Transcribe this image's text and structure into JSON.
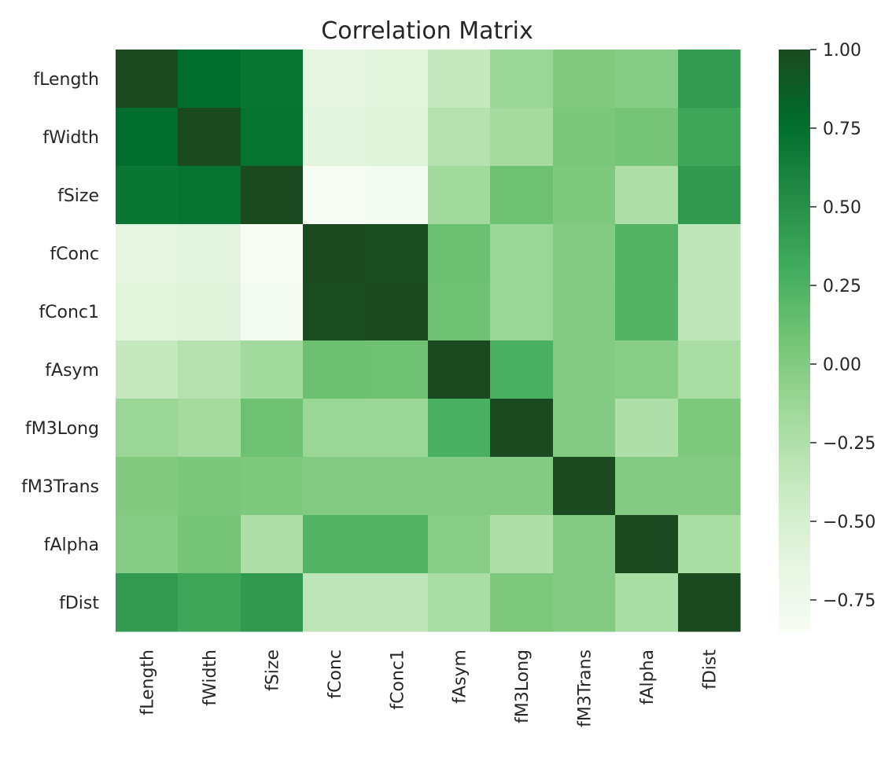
{
  "chart_data": {
    "type": "heatmap",
    "title": "Correlation Matrix",
    "xlabel": "",
    "ylabel": "",
    "x_labels": [
      "fLength",
      "fWidth",
      "fSize",
      "fConc",
      "fConc1",
      "fAsym",
      "fM3Long",
      "fM3Trans",
      "fAlpha",
      "fDist"
    ],
    "y_labels": [
      "fLength",
      "fWidth",
      "fSize",
      "fConc",
      "fConc1",
      "fAsym",
      "fM3Long",
      "fM3Trans",
      "fAlpha",
      "fDist"
    ],
    "values": [
      [
        1.0,
        0.77,
        0.7,
        -0.63,
        -0.6,
        -0.38,
        -0.12,
        0.01,
        -0.01,
        0.42
      ],
      [
        0.77,
        1.0,
        0.72,
        -0.61,
        -0.58,
        -0.27,
        -0.18,
        0.04,
        0.07,
        0.34
      ],
      [
        0.7,
        0.72,
        1.0,
        -0.85,
        -0.81,
        -0.16,
        0.1,
        0.02,
        -0.23,
        0.44
      ],
      [
        -0.63,
        -0.61,
        -0.85,
        1.0,
        0.98,
        0.11,
        -0.12,
        0.0,
        0.23,
        -0.33
      ],
      [
        -0.6,
        -0.58,
        -0.81,
        0.98,
        1.0,
        0.1,
        -0.12,
        0.0,
        0.22,
        -0.33
      ],
      [
        -0.38,
        -0.27,
        -0.16,
        0.11,
        0.1,
        1.0,
        0.27,
        0.0,
        -0.03,
        -0.21
      ],
      [
        -0.12,
        -0.18,
        0.1,
        -0.12,
        -0.12,
        0.27,
        1.0,
        0.0,
        -0.24,
        0.03
      ],
      [
        0.01,
        0.04,
        0.02,
        0.0,
        0.0,
        0.0,
        0.0,
        1.0,
        0.0,
        0.0
      ],
      [
        -0.01,
        0.07,
        -0.23,
        0.23,
        0.22,
        -0.03,
        -0.24,
        0.0,
        1.0,
        -0.21
      ],
      [
        0.42,
        0.34,
        0.44,
        -0.33,
        -0.33,
        -0.21,
        0.03,
        0.0,
        -0.21,
        1.0
      ]
    ],
    "colorbar": {
      "ticks": [
        1.0,
        0.75,
        0.5,
        0.25,
        0.0,
        -0.25,
        -0.5,
        -0.75
      ],
      "tick_labels": [
        "1.00",
        "0.75",
        "0.50",
        "0.25",
        "0.00",
        "−0.25",
        "−0.50",
        "−0.75"
      ],
      "vmin": -0.85,
      "vmax": 1.0
    },
    "colormap": "Greens",
    "colors": [
      "#f7fcf5",
      "#e5f5e0",
      "#c7e9c0",
      "#a1d99b",
      "#74c476",
      "#41ab5d",
      "#238b45",
      "#006d2c",
      "#1b4a20"
    ],
    "grid": false
  }
}
